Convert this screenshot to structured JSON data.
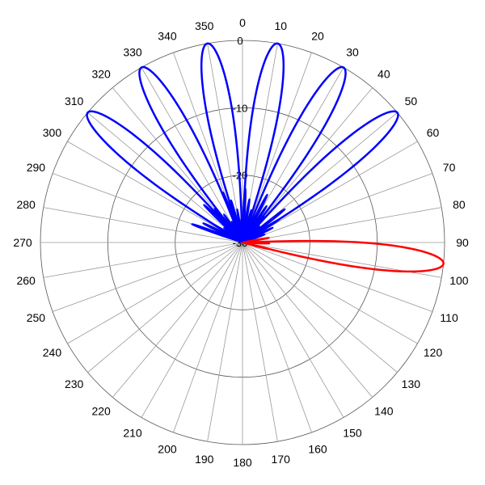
{
  "chart_data": {
    "type": "line",
    "subtype": "polar",
    "title": "",
    "angle_ticks": [
      "0",
      "10",
      "20",
      "30",
      "40",
      "50",
      "60",
      "70",
      "80",
      "90",
      "100",
      "110",
      "120",
      "130",
      "140",
      "150",
      "160",
      "170",
      "180",
      "190",
      "200",
      "210",
      "220",
      "230",
      "240",
      "250",
      "260",
      "270",
      "280",
      "290",
      "300",
      "310",
      "320",
      "330",
      "340",
      "350"
    ],
    "angle_direction": "clockwise",
    "angle_zero": "top",
    "radial_ticks": [
      "0",
      "-10",
      "-20",
      "-30"
    ],
    "radial_range": [
      -30,
      0
    ],
    "grid": true,
    "legend": "none",
    "series": [
      {
        "color": "#0000ff",
        "lobes": [
          {
            "peak_angle": -50,
            "peak_value": 0
          },
          {
            "peak_angle": -30,
            "peak_value": 0
          },
          {
            "peak_angle": -10,
            "peak_value": 0
          },
          {
            "peak_angle": 10,
            "peak_value": 0
          },
          {
            "peak_angle": 30,
            "peak_value": 0
          },
          {
            "peak_angle": 50,
            "peak_value": 0
          }
        ]
      },
      {
        "color": "#ff0000",
        "lobes": [
          {
            "peak_angle": 96,
            "peak_value": 0
          }
        ]
      }
    ]
  }
}
